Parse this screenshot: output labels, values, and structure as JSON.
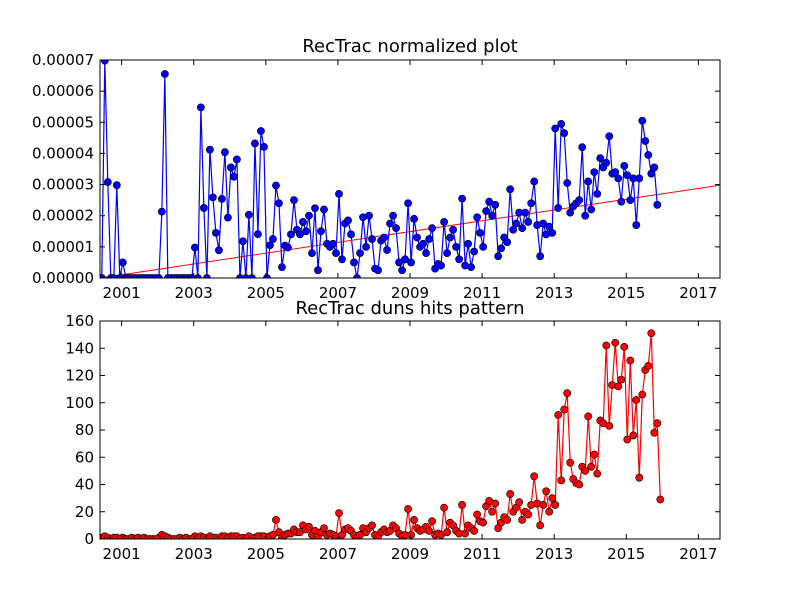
{
  "chart_data": [
    {
      "type": "line",
      "title": "RecTrac normalized plot",
      "xlabel": "",
      "ylabel": "",
      "xlim": [
        2000.4,
        2017.6
      ],
      "ylim": [
        0,
        7e-05
      ],
      "x_ticks": [
        2001,
        2003,
        2005,
        2007,
        2009,
        2011,
        2013,
        2015,
        2017
      ],
      "x_tick_labels": [
        "2001",
        "2003",
        "2005",
        "2007",
        "2009",
        "2011",
        "2013",
        "2015",
        "2017"
      ],
      "y_ticks": [
        0,
        1e-05,
        2e-05,
        3e-05,
        4e-05,
        5e-05,
        6e-05,
        7e-05
      ],
      "y_tick_labels": [
        "0.00000",
        "0.00001",
        "0.00002",
        "0.00003",
        "0.00004",
        "0.00005",
        "0.00006",
        "0.00007"
      ],
      "grid": false,
      "colors": {
        "series": "#0000ff",
        "trend": "#ff0000"
      },
      "series": [
        {
          "name": "",
          "x_start": 2000.45,
          "x_step": 0.0833,
          "values": [
            0,
            6.98e-05,
            3.08e-05,
            0,
            0,
            2.98e-05,
            0,
            5e-06,
            0,
            0,
            0,
            0,
            0,
            0,
            0,
            0,
            0,
            0,
            0,
            0,
            2.13e-05,
            6.55e-05,
            0,
            0,
            0,
            0,
            0,
            0,
            0,
            0,
            0,
            9.8e-06,
            0,
            5.48e-05,
            2.25e-05,
            0,
            4.12e-05,
            2.59e-05,
            1.45e-05,
            8.9e-06,
            2.54e-05,
            4.04e-05,
            1.94e-05,
            3.55e-05,
            3.25e-05,
            3.81e-05,
            0,
            1.18e-05,
            0,
            2.03e-05,
            0,
            4.32e-05,
            1.41e-05,
            4.72e-05,
            4.21e-05,
            0,
            1.05e-05,
            1.25e-05,
            2.97e-05,
            2.4e-05,
            3.5e-06,
            1.04e-05,
            9.8e-06,
            1.4e-05,
            2.5e-05,
            1.55e-05,
            1.4e-05,
            1.8e-05,
            1.5e-05,
            2e-05,
            8e-06,
            2.24e-05,
            2.5e-06,
            1.5e-05,
            2.2e-05,
            1.1e-05,
            1e-05,
            1.1e-05,
            8e-06,
            2.7e-05,
            6e-06,
            1.75e-05,
            1.85e-05,
            1.4e-05,
            5e-06,
            0,
            8e-06,
            1.95e-05,
            1e-05,
            2e-05,
            1.25e-05,
            3e-06,
            2.5e-06,
            1.2e-05,
            1.3e-05,
            9e-06,
            1.75e-05,
            2e-05,
            1.6e-05,
            5e-06,
            2.5e-06,
            6e-06,
            2.4e-05,
            5e-06,
            1.9e-05,
            1.3e-05,
            1e-05,
            1.1e-05,
            8e-06,
            1.25e-05,
            1.6e-05,
            3e-06,
            4.5e-06,
            4e-06,
            1.8e-05,
            8e-06,
            1.3e-05,
            1.55e-05,
            1e-05,
            6e-06,
            2.55e-05,
            4e-06,
            1.1e-05,
            3.5e-06,
            8.5e-06,
            1.95e-05,
            1.45e-05,
            1e-05,
            2.15e-05,
            2.45e-05,
            2e-05,
            2.35e-05,
            7e-06,
            9.5e-06,
            1.3e-05,
            1.15e-05,
            2.85e-05,
            1.55e-05,
            1.75e-05,
            2.1e-05,
            1.6e-05,
            2.1e-05,
            1.8e-05,
            2.4e-05,
            3.1e-05,
            1.7e-05,
            7e-06,
            1.75e-05,
            1.4e-05,
            1.65e-05,
            1.45e-05,
            4.8e-05,
            2.25e-05,
            4.95e-05,
            4.65e-05,
            3.05e-05,
            2.1e-05,
            2.3e-05,
            2.4e-05,
            2.5e-05,
            4.2e-05,
            2e-05,
            3.1e-05,
            2.2e-05,
            3.4e-05,
            2.7e-05,
            3.85e-05,
            3.55e-05,
            3.7e-05,
            4.55e-05,
            3.35e-05,
            3.4e-05,
            3.2e-05,
            2.45e-05,
            3.6e-05,
            3.3e-05,
            2.5e-05,
            3.2e-05,
            1.7e-05,
            3.2e-05,
            5.05e-05,
            4.4e-05,
            3.95e-05,
            3.35e-05,
            3.55e-05,
            2.35e-05
          ]
        }
      ],
      "trend_line": {
        "x": [
          2000.4,
          2017.6
        ],
        "y": [
          0,
          2.98e-05
        ]
      }
    },
    {
      "type": "line",
      "title": "RecTrac duns hits pattern",
      "xlabel": "",
      "ylabel": "",
      "xlim": [
        2000.4,
        2017.6
      ],
      "ylim": [
        0,
        160
      ],
      "x_ticks": [
        2001,
        2003,
        2005,
        2007,
        2009,
        2011,
        2013,
        2015,
        2017
      ],
      "x_tick_labels": [
        "2001",
        "2003",
        "2005",
        "2007",
        "2009",
        "2011",
        "2013",
        "2015",
        "2017"
      ],
      "y_ticks": [
        0,
        20,
        40,
        60,
        80,
        100,
        120,
        140,
        160
      ],
      "y_tick_labels": [
        "0",
        "20",
        "40",
        "60",
        "80",
        "100",
        "120",
        "140",
        "160"
      ],
      "grid": false,
      "colors": {
        "series": "#ff0000"
      },
      "series": [
        {
          "name": "",
          "x_start": 2000.45,
          "x_step": 0.0833,
          "values": [
            1,
            2,
            1,
            0,
            1,
            1,
            0,
            1,
            0,
            0,
            1,
            0,
            1,
            0,
            1,
            0,
            0,
            0,
            0,
            1,
            3,
            2,
            1,
            0,
            0,
            0,
            1,
            0,
            1,
            0,
            0,
            2,
            0,
            2,
            1,
            0,
            2,
            1,
            1,
            0,
            2,
            2,
            1,
            2,
            2,
            2,
            0,
            1,
            0,
            2,
            0,
            1,
            2,
            2,
            2,
            0,
            2,
            3,
            14,
            5,
            1,
            3,
            4,
            4,
            7,
            5,
            5,
            10,
            7,
            9,
            3,
            6,
            2,
            5,
            8,
            3,
            4,
            3,
            2,
            19,
            3,
            7,
            8,
            6,
            3,
            1,
            3,
            8,
            5,
            8,
            10,
            3,
            2,
            5,
            7,
            5,
            6,
            10,
            8,
            4,
            2,
            3,
            22,
            3,
            14,
            8,
            6,
            7,
            9,
            6,
            13,
            3,
            4,
            3,
            23,
            5,
            12,
            10,
            6,
            4,
            25,
            4,
            10,
            8,
            6,
            18,
            13,
            12,
            24,
            28,
            20,
            26,
            8,
            12,
            16,
            14,
            33,
            20,
            23,
            27,
            14,
            20,
            18,
            25,
            46,
            26,
            10,
            25,
            35,
            20,
            30,
            25,
            91,
            43,
            95,
            107,
            56,
            44,
            41,
            40,
            53,
            50,
            90,
            53,
            62,
            48,
            87,
            85,
            142,
            83,
            113,
            144,
            112,
            117,
            141,
            73,
            131,
            76,
            102,
            45,
            106,
            124,
            127,
            151,
            78,
            85,
            29
          ]
        }
      ]
    }
  ]
}
